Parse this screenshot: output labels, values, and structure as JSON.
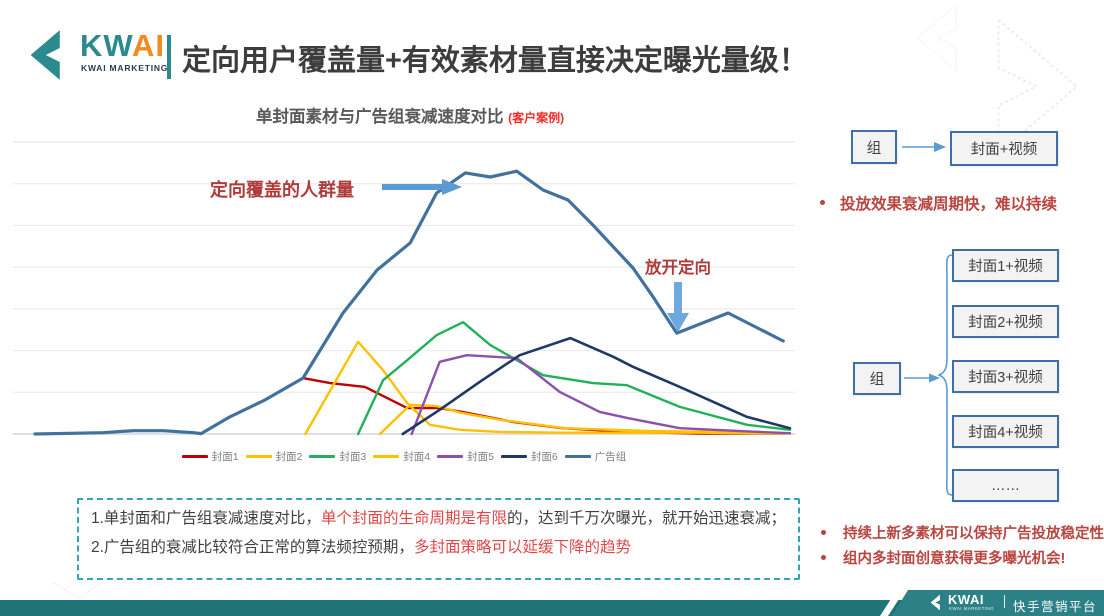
{
  "header": {
    "brand_kw": "KW",
    "brand_ai": "AI",
    "brand_sub": "KWAI MARKETING",
    "title": "定向用户覆盖量+有效素材量直接决定曝光量级！"
  },
  "chart": {
    "title": "单封面素材与广告组衰减速度对比",
    "note": "(客户案例)",
    "annotation_peak": "定向覆盖的人群量",
    "annotation_release": "放开定向"
  },
  "chart_data": {
    "type": "line",
    "title": "单封面素材与广告组衰减速度对比 (客户案例)",
    "xlabel": "",
    "ylabel": "",
    "x_range": [
      0,
      100
    ],
    "ylim": [
      0,
      700
    ],
    "gridlines_y": [
      0,
      100,
      200,
      300,
      400,
      500,
      600,
      700
    ],
    "grid": true,
    "axis_tick_labels": "none",
    "legend_position": "bottom",
    "annotations": [
      {
        "text": "定向覆盖的人群量",
        "type": "arrow-right",
        "target_series": "广告组",
        "points_at": "rising edge"
      },
      {
        "text": "放开定向",
        "type": "arrow-down",
        "target_series": "广告组",
        "points_at": "dip before rebound"
      }
    ],
    "series": [
      {
        "name": "封面1",
        "color": "#C00000",
        "width": 2.4,
        "points": [
          [
            35.5,
            134
          ],
          [
            39.1,
            122
          ],
          [
            43.7,
            113
          ],
          [
            49.3,
            62
          ],
          [
            53.6,
            62
          ],
          [
            56.6,
            53
          ],
          [
            63.3,
            29
          ],
          [
            69.9,
            14
          ],
          [
            78.8,
            5
          ],
          [
            88.1,
            1
          ],
          [
            99.3,
            1
          ]
        ]
      },
      {
        "name": "封面2",
        "color": "#FFC000",
        "width": 2.4,
        "points": [
          [
            35.8,
            0
          ],
          [
            42.8,
            221
          ],
          [
            46.1,
            153
          ],
          [
            49.3,
            74
          ],
          [
            52.3,
            22
          ],
          [
            56.3,
            10
          ],
          [
            61.6,
            5
          ],
          [
            69.5,
            3
          ],
          [
            80.1,
            3
          ],
          [
            88.1,
            3
          ],
          [
            99.3,
            1
          ]
        ]
      },
      {
        "name": "封面3",
        "color": "#22B158",
        "width": 2.4,
        "points": [
          [
            42.8,
            0
          ],
          [
            46.1,
            129
          ],
          [
            49.3,
            177
          ],
          [
            53.2,
            237
          ],
          [
            56.7,
            268
          ],
          [
            60.3,
            213
          ],
          [
            64.2,
            173
          ],
          [
            67.3,
            141
          ],
          [
            73.9,
            122
          ],
          [
            78.4,
            117
          ],
          [
            85.4,
            65
          ],
          [
            94.3,
            22
          ],
          [
            100,
            10
          ]
        ]
      },
      {
        "name": "封面4",
        "color": "#FFC000",
        "width": 2.4,
        "points": [
          [
            45.7,
            0
          ],
          [
            49.7,
            70
          ],
          [
            53.2,
            67
          ],
          [
            56.6,
            50
          ],
          [
            61.6,
            34
          ],
          [
            70.2,
            14
          ],
          [
            81.5,
            7
          ],
          [
            92.1,
            5
          ],
          [
            100,
            1
          ]
        ]
      },
      {
        "name": "封面5",
        "color": "#8E4FAD",
        "width": 2.4,
        "points": [
          [
            49.9,
            0
          ],
          [
            53.6,
            173
          ],
          [
            57.2,
            189
          ],
          [
            63.8,
            182
          ],
          [
            69.5,
            101
          ],
          [
            74.8,
            53
          ],
          [
            78.5,
            38
          ],
          [
            85.4,
            14
          ],
          [
            93.4,
            7
          ],
          [
            100,
            2
          ]
        ]
      },
      {
        "name": "封面6",
        "color": "#1F3864",
        "width": 2.6,
        "points": [
          [
            48.7,
            0
          ],
          [
            53.6,
            58
          ],
          [
            58.9,
            125
          ],
          [
            64.2,
            189
          ],
          [
            70.9,
            230
          ],
          [
            76.6,
            185
          ],
          [
            79.2,
            161
          ],
          [
            85.4,
            113
          ],
          [
            94.3,
            41
          ],
          [
            100,
            14
          ]
        ]
      },
      {
        "name": "广告组",
        "color": "#41719C",
        "width": 3.2,
        "points": [
          [
            0,
            0
          ],
          [
            9,
            3
          ],
          [
            13,
            8
          ],
          [
            17,
            8
          ],
          [
            21,
            3
          ],
          [
            22,
            1
          ],
          [
            25.8,
            41
          ],
          [
            30.5,
            82
          ],
          [
            35.5,
            134
          ],
          [
            40.8,
            290
          ],
          [
            45.3,
            393
          ],
          [
            49.7,
            458
          ],
          [
            53.2,
            578
          ],
          [
            57,
            626
          ],
          [
            60.3,
            616
          ],
          [
            63.8,
            630
          ],
          [
            67.3,
            585
          ],
          [
            70.6,
            561
          ],
          [
            73.9,
            501
          ],
          [
            79.2,
            398
          ],
          [
            81.9,
            328
          ],
          [
            85,
            242
          ],
          [
            91.8,
            290
          ],
          [
            99.1,
            223
          ]
        ]
      }
    ]
  },
  "right_panel": {
    "flow1": {
      "source": "组",
      "target": "封面+视频"
    },
    "decay_note": "投放效果衰减周期快，难以持续",
    "flow2": {
      "source": "组",
      "targets": [
        "封面1+视频",
        "封面2+视频",
        "封面3+视频",
        "封面4+视频",
        "……"
      ]
    },
    "benefits": [
      "持续上新多素材可以保持广告投放稳定性；",
      "组内多封面创意获得更多曝光机会!"
    ]
  },
  "notes": {
    "p1": [
      {
        "t": "1.单封面和广告组衰减速度对比，",
        "c": "dark"
      },
      {
        "t": "单个封面的生命周期是有限",
        "c": "red"
      },
      {
        "t": "的，达到千万次曝光，就开始迅速衰减；",
        "c": "dark"
      }
    ],
    "p2": [
      {
        "t": "2.广告组的衰减比较符合正常的算法频控预期，",
        "c": "dark"
      },
      {
        "t": "多封面策略可以延缓下降的趋势",
        "c": "red"
      }
    ]
  },
  "footer": {
    "brand": "KWAI",
    "brand_sub": "KWAI MARKETING",
    "platform": "快手营销平台"
  },
  "icons": {
    "brand_mark": "kwai-chevron",
    "arrows": "flow-arrow-right",
    "annotation_arrows": [
      "thick-arrow-right",
      "thick-arrow-down"
    ]
  },
  "colors": {
    "teal": "#2B8A8E",
    "orange": "#F5891D",
    "title_dark": "#3D3D3D",
    "annotation_red": "#B03B3B",
    "note_red": "#E04848",
    "bullet_red": "#B84540",
    "arrow_blue": "#5B9BD5",
    "box_border_blue": "#3E6FA8",
    "notes_border_teal": "#35A3B5",
    "footer_teal": "#1E7477"
  }
}
